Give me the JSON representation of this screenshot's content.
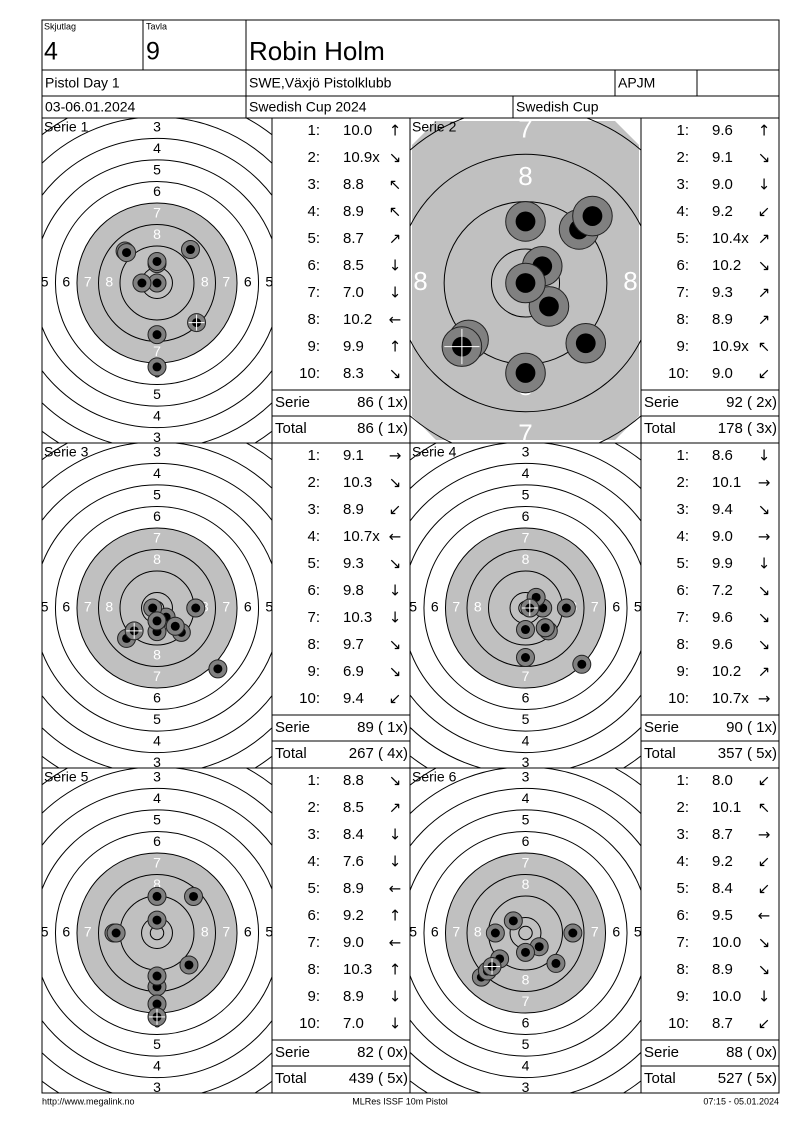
{
  "header": {
    "squad_label": "Skjutlag",
    "squad": "4",
    "target_label": "Tavla",
    "target": "9",
    "name": "Robin Holm",
    "event": "Pistol Day 1",
    "club": "SWE,Växjö Pistolklubb",
    "class": "APJM",
    "date": "03-06.01.2024",
    "competition": "Swedish Cup 2024",
    "cup": "Swedish Cup"
  },
  "target": {
    "ring_labels": [
      "3",
      "4",
      "5",
      "6",
      "7",
      "8"
    ]
  },
  "series": [
    {
      "title": "Serie 1",
      "zoom": false,
      "shots": [
        {
          "n": "1:",
          "score": "10.0",
          "arrow": "↑"
        },
        {
          "n": "2:",
          "score": "10.9x",
          "arrow": "↘"
        },
        {
          "n": "3:",
          "score": "8.8",
          "arrow": "↖"
        },
        {
          "n": "4:",
          "score": "8.9",
          "arrow": "↖"
        },
        {
          "n": "5:",
          "score": "8.7",
          "arrow": "↗"
        },
        {
          "n": "6:",
          "score": "8.5",
          "arrow": "↓"
        },
        {
          "n": "7:",
          "score": "7.0",
          "arrow": "↓"
        },
        {
          "n": "8:",
          "score": "10.2",
          "arrow": "←"
        },
        {
          "n": "9:",
          "score": "9.9",
          "arrow": "↑"
        },
        {
          "n": "10:",
          "score": "8.3",
          "arrow": "↘"
        }
      ],
      "serie_label": "Serie",
      "serie": "86 ( 1x)",
      "total_label": "Total",
      "total": "86 ( 1x)"
    },
    {
      "title": "Serie 2",
      "zoom": true,
      "shots": [
        {
          "n": "1:",
          "score": "9.6",
          "arrow": "↑"
        },
        {
          "n": "2:",
          "score": "9.1",
          "arrow": "↘"
        },
        {
          "n": "3:",
          "score": "9.0",
          "arrow": "↓"
        },
        {
          "n": "4:",
          "score": "9.2",
          "arrow": "↙"
        },
        {
          "n": "5:",
          "score": "10.4x",
          "arrow": "↗"
        },
        {
          "n": "6:",
          "score": "10.2",
          "arrow": "↘"
        },
        {
          "n": "7:",
          "score": "9.3",
          "arrow": "↗"
        },
        {
          "n": "8:",
          "score": "8.9",
          "arrow": "↗"
        },
        {
          "n": "9:",
          "score": "10.9x",
          "arrow": "↖"
        },
        {
          "n": "10:",
          "score": "9.0",
          "arrow": "↙"
        }
      ],
      "serie_label": "Serie",
      "serie": "92 ( 2x)",
      "total_label": "Total",
      "total": "178 ( 3x)"
    },
    {
      "title": "Serie 3",
      "zoom": false,
      "shots": [
        {
          "n": "1:",
          "score": "9.1",
          "arrow": "→"
        },
        {
          "n": "2:",
          "score": "10.3",
          "arrow": "↘"
        },
        {
          "n": "3:",
          "score": "8.9",
          "arrow": "↙"
        },
        {
          "n": "4:",
          "score": "10.7x",
          "arrow": "←"
        },
        {
          "n": "5:",
          "score": "9.3",
          "arrow": "↘"
        },
        {
          "n": "6:",
          "score": "9.8",
          "arrow": "↓"
        },
        {
          "n": "7:",
          "score": "10.3",
          "arrow": "↓"
        },
        {
          "n": "8:",
          "score": "9.7",
          "arrow": "↘"
        },
        {
          "n": "9:",
          "score": "6.9",
          "arrow": "↘"
        },
        {
          "n": "10:",
          "score": "9.4",
          "arrow": "↙"
        }
      ],
      "serie_label": "Serie",
      "serie": "89 ( 1x)",
      "total_label": "Total",
      "total": "267 ( 4x)"
    },
    {
      "title": "Serie 4",
      "zoom": false,
      "shots": [
        {
          "n": "1:",
          "score": "8.6",
          "arrow": "↓"
        },
        {
          "n": "2:",
          "score": "10.1",
          "arrow": "→"
        },
        {
          "n": "3:",
          "score": "9.4",
          "arrow": "↘"
        },
        {
          "n": "4:",
          "score": "9.0",
          "arrow": "→"
        },
        {
          "n": "5:",
          "score": "9.9",
          "arrow": "↓"
        },
        {
          "n": "6:",
          "score": "7.2",
          "arrow": "↘"
        },
        {
          "n": "7:",
          "score": "9.6",
          "arrow": "↘"
        },
        {
          "n": "8:",
          "score": "9.6",
          "arrow": "↘"
        },
        {
          "n": "9:",
          "score": "10.2",
          "arrow": "↗"
        },
        {
          "n": "10:",
          "score": "10.7x",
          "arrow": "→"
        }
      ],
      "serie_label": "Serie",
      "serie": "90 ( 1x)",
      "total_label": "Total",
      "total": "357 ( 5x)"
    },
    {
      "title": "Serie 5",
      "zoom": false,
      "shots": [
        {
          "n": "1:",
          "score": "8.8",
          "arrow": "↘"
        },
        {
          "n": "2:",
          "score": "8.5",
          "arrow": "↗"
        },
        {
          "n": "3:",
          "score": "8.4",
          "arrow": "↓"
        },
        {
          "n": "4:",
          "score": "7.6",
          "arrow": "↓"
        },
        {
          "n": "5:",
          "score": "8.9",
          "arrow": "←"
        },
        {
          "n": "6:",
          "score": "9.2",
          "arrow": "↑"
        },
        {
          "n": "7:",
          "score": "9.0",
          "arrow": "←"
        },
        {
          "n": "8:",
          "score": "10.3",
          "arrow": "↑"
        },
        {
          "n": "9:",
          "score": "8.9",
          "arrow": "↓"
        },
        {
          "n": "10:",
          "score": "7.0",
          "arrow": "↓"
        }
      ],
      "serie_label": "Serie",
      "serie": "82 ( 0x)",
      "total_label": "Total",
      "total": "439 ( 5x)"
    },
    {
      "title": "Serie 6",
      "zoom": false,
      "shots": [
        {
          "n": "1:",
          "score": "8.0",
          "arrow": "↙"
        },
        {
          "n": "2:",
          "score": "10.1",
          "arrow": "↖"
        },
        {
          "n": "3:",
          "score": "8.7",
          "arrow": "→"
        },
        {
          "n": "4:",
          "score": "9.2",
          "arrow": "↙"
        },
        {
          "n": "5:",
          "score": "8.4",
          "arrow": "↙"
        },
        {
          "n": "6:",
          "score": "9.5",
          "arrow": "←"
        },
        {
          "n": "7:",
          "score": "10.0",
          "arrow": "↘"
        },
        {
          "n": "8:",
          "score": "8.9",
          "arrow": "↘"
        },
        {
          "n": "9:",
          "score": "10.0",
          "arrow": "↓"
        },
        {
          "n": "10:",
          "score": "8.7",
          "arrow": "↙"
        }
      ],
      "serie_label": "Serie",
      "serie": "88 ( 0x)",
      "total_label": "Total",
      "total": "527 ( 5x)"
    }
  ],
  "footer": {
    "url": "http://www.megalink.no",
    "software": "MLRes ISSF 10m Pistol",
    "timestamp": "07:15 - 05.01.2024"
  }
}
